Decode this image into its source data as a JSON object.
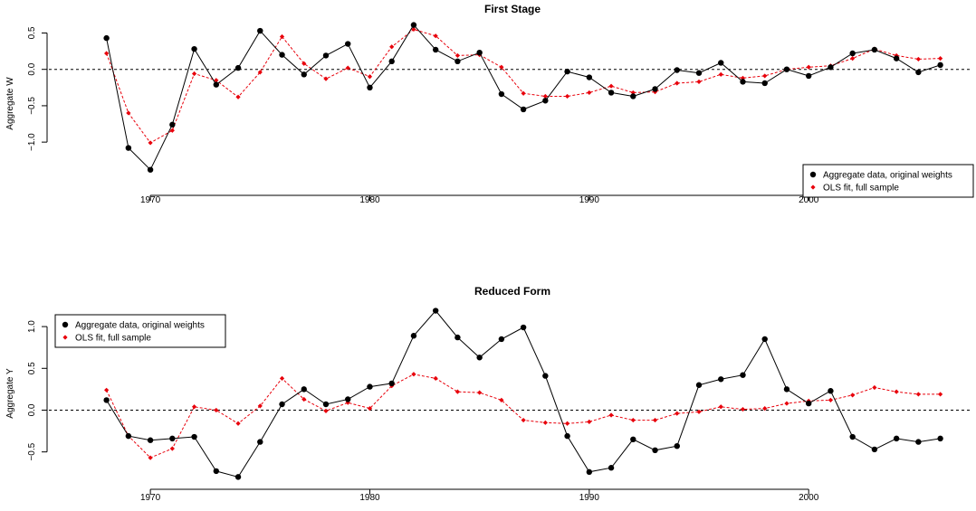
{
  "chart_data": [
    {
      "type": "line",
      "title": "First Stage",
      "xlabel": "",
      "ylabel": "Aggregate W",
      "xlim": [
        1966.2,
        2006.8
      ],
      "ylim": [
        -1.62,
        0.68
      ],
      "xticks": [
        1970,
        1980,
        1990,
        2000
      ],
      "yticks": [
        -1.0,
        -0.5,
        0.0,
        0.5
      ],
      "ytick_labels": [
        "−1.0",
        "−0.5",
        "0.0",
        "0.5"
      ],
      "hline": 0,
      "legend_position": "bottom-right",
      "x": [
        1968,
        1969,
        1970,
        1971,
        1972,
        1973,
        1974,
        1975,
        1976,
        1977,
        1978,
        1979,
        1980,
        1981,
        1982,
        1983,
        1984,
        1985,
        1986,
        1987,
        1988,
        1989,
        1990,
        1991,
        1992,
        1993,
        1994,
        1995,
        1996,
        1997,
        1998,
        1999,
        2000,
        2001,
        2002,
        2003,
        2004,
        2005,
        2006
      ],
      "series": [
        {
          "name": "Aggregate data, original weights",
          "color": "#000000",
          "style": "solid-circle",
          "values": [
            0.43,
            -1.08,
            -1.38,
            -0.76,
            0.28,
            -0.21,
            0.02,
            0.53,
            0.2,
            -0.07,
            0.19,
            0.35,
            -0.25,
            0.11,
            0.61,
            0.27,
            0.11,
            0.23,
            -0.34,
            -0.55,
            -0.43,
            -0.03,
            -0.11,
            -0.32,
            -0.37,
            -0.27,
            -0.01,
            -0.05,
            0.09,
            -0.17,
            -0.19,
            0.0,
            -0.09,
            0.03,
            0.22,
            0.27,
            0.15,
            -0.04,
            0.06
          ]
        },
        {
          "name": "OLS fit, full sample",
          "color": "#e8000b",
          "style": "dashed-diamond",
          "values": [
            0.22,
            -0.6,
            -1.01,
            -0.84,
            -0.06,
            -0.15,
            -0.38,
            -0.04,
            0.45,
            0.08,
            -0.13,
            0.02,
            -0.1,
            0.31,
            0.55,
            0.46,
            0.19,
            0.2,
            0.03,
            -0.33,
            -0.37,
            -0.37,
            -0.32,
            -0.23,
            -0.32,
            -0.31,
            -0.19,
            -0.17,
            -0.07,
            -0.12,
            -0.09,
            0.0,
            0.03,
            0.05,
            0.15,
            0.28,
            0.19,
            0.14,
            0.15
          ]
        }
      ]
    },
    {
      "type": "line",
      "title": "Reduced Form",
      "xlabel": "",
      "ylabel": "Aggregate Y",
      "xlim": [
        1966.2,
        2006.8
      ],
      "ylim": [
        -0.85,
        1.25
      ],
      "xticks": [
        1970,
        1980,
        1990,
        2000
      ],
      "yticks": [
        -0.5,
        0.0,
        0.5,
        1.0
      ],
      "ytick_labels": [
        "−0.5",
        "0.0",
        "0.5",
        "1.0"
      ],
      "hline": 0,
      "legend_position": "top-left",
      "x": [
        1968,
        1969,
        1970,
        1971,
        1972,
        1973,
        1974,
        1975,
        1976,
        1977,
        1978,
        1979,
        1980,
        1981,
        1982,
        1983,
        1984,
        1985,
        1986,
        1987,
        1988,
        1989,
        1990,
        1991,
        1992,
        1993,
        1994,
        1995,
        1996,
        1997,
        1998,
        1999,
        2000,
        2001,
        2002,
        2003,
        2004,
        2005,
        2006
      ],
      "series": [
        {
          "name": "Aggregate data, original weights",
          "color": "#000000",
          "style": "solid-circle",
          "values": [
            0.12,
            -0.31,
            -0.36,
            -0.34,
            -0.32,
            -0.73,
            -0.8,
            -0.38,
            0.07,
            0.25,
            0.07,
            0.13,
            0.28,
            0.32,
            0.89,
            1.19,
            0.87,
            0.63,
            0.85,
            0.99,
            0.41,
            -0.31,
            -0.74,
            -0.69,
            -0.35,
            -0.48,
            -0.43,
            0.3,
            0.37,
            0.42,
            0.85,
            0.25,
            0.08,
            0.23,
            -0.32,
            -0.47,
            -0.34,
            -0.38,
            -0.34
          ]
        },
        {
          "name": "OLS fit, full sample",
          "color": "#e8000b",
          "style": "dashed-diamond",
          "values": [
            0.24,
            -0.31,
            -0.57,
            -0.46,
            0.04,
            0.0,
            -0.16,
            0.05,
            0.38,
            0.13,
            -0.01,
            0.09,
            0.02,
            0.29,
            0.43,
            0.38,
            0.22,
            0.21,
            0.12,
            -0.12,
            -0.15,
            -0.16,
            -0.14,
            -0.06,
            -0.12,
            -0.12,
            -0.04,
            -0.02,
            0.04,
            0.01,
            0.02,
            0.08,
            0.11,
            0.12,
            0.18,
            0.27,
            0.22,
            0.19,
            0.19
          ]
        }
      ]
    }
  ]
}
